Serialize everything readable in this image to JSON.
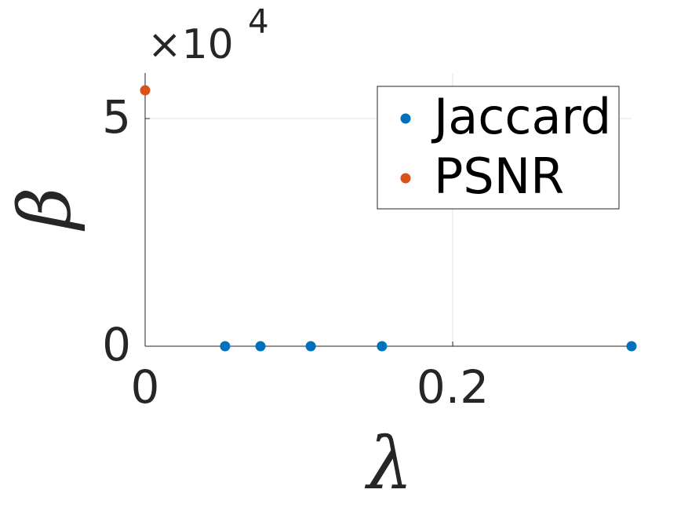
{
  "chart_data": {
    "type": "scatter",
    "x_label": "λ",
    "y_label": "β",
    "y_multiplier_base": "×10",
    "y_multiplier_power": "4",
    "series": [
      {
        "name": "Jaccard",
        "color": "#0072BD",
        "x": [
          0.052,
          0.075,
          0.1077,
          0.154,
          0.3163
        ],
        "values": [
          0,
          0,
          0,
          0,
          0
        ]
      },
      {
        "name": "PSNR",
        "color": "#D95319",
        "x": [
          0
        ],
        "values": [
          56200
        ]
      }
    ],
    "xlim": [
      0,
      0.3163
    ],
    "xticks": [
      0,
      0.2
    ],
    "ylim": [
      0,
      60000
    ],
    "yticks": [
      0,
      {
        "value": 50000,
        "label": "5"
      }
    ],
    "grid": true,
    "legend_position": "northeast"
  }
}
